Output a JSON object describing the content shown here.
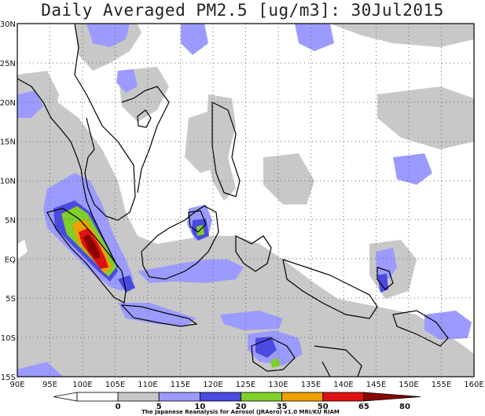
{
  "title": "Daily Averaged PM2.5 [ug/m3]: 30Jul2015",
  "map": {
    "lon_range": [
      90,
      160
    ],
    "lat_range": [
      -15,
      30
    ],
    "x_ticks": [
      "90E",
      "95E",
      "100E",
      "105E",
      "110E",
      "115E",
      "120E",
      "125E",
      "130E",
      "135E",
      "140E",
      "145E",
      "150E",
      "155E",
      "160E"
    ],
    "y_ticks": [
      "30N",
      "25N",
      "20N",
      "15N",
      "10N",
      "5N",
      "EQ",
      "5S",
      "10S",
      "15S"
    ],
    "gridlines": "dotted"
  },
  "colorbar": {
    "levels": [
      "0",
      "5",
      "10",
      "20",
      "35",
      "50",
      "65",
      "80"
    ],
    "colors": [
      "#ffffff",
      "#ffffff",
      "#c8c8c8",
      "#9b9bff",
      "#4a4ae0",
      "#7ecf2a",
      "#f0a000",
      "#e01010",
      "#8b0000"
    ],
    "credit": "The Japanese Reanalysis for Aerosol (JRAero) v1.0 MRI/KU RIAM"
  }
}
